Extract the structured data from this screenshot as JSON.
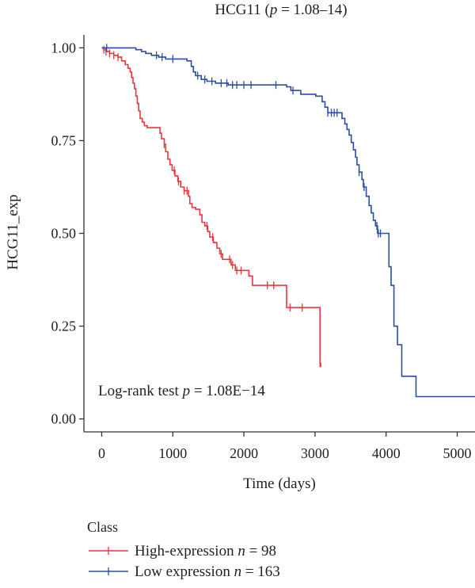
{
  "chart_data": {
    "type": "line",
    "subtype": "kaplan-meier",
    "title": {
      "prefix": "HCG11 (",
      "italic": "p",
      "suffix": " = 1.08–14)"
    },
    "xlabel": "Time (days)",
    "ylabel": "HCG11_exp",
    "xlim": [
      -250,
      5250
    ],
    "ylim": [
      -0.035,
      1.035
    ],
    "x_ticks": [
      0,
      1000,
      2000,
      3000,
      4000,
      5000
    ],
    "x_tick_labels": [
      "0",
      "1000",
      "2000",
      "3000",
      "4000",
      "5000"
    ],
    "y_ticks": [
      0,
      0.25,
      0.5,
      0.75,
      1.0
    ],
    "y_tick_labels": [
      "0.00",
      "0.25",
      "0.50",
      "0.75",
      "1.00"
    ],
    "grid": false,
    "annotation": {
      "prefix": "Log-rank test ",
      "italic": "p",
      "suffix": " = 1.08E−14"
    },
    "legend": {
      "title": "Class",
      "placement": "bottom-left"
    },
    "series": [
      {
        "name": "High-expression",
        "legend_label": {
          "prefix": "High-expression ",
          "italic": "n",
          "suffix": " = 98"
        },
        "color": "#e8383d",
        "steps": [
          [
            0,
            1.0
          ],
          [
            30,
            0.995
          ],
          [
            60,
            0.99
          ],
          [
            110,
            0.985
          ],
          [
            170,
            0.98
          ],
          [
            230,
            0.975
          ],
          [
            280,
            0.965
          ],
          [
            330,
            0.955
          ],
          [
            370,
            0.945
          ],
          [
            400,
            0.935
          ],
          [
            420,
            0.92
          ],
          [
            440,
            0.905
          ],
          [
            460,
            0.89
          ],
          [
            480,
            0.87
          ],
          [
            500,
            0.85
          ],
          [
            520,
            0.83
          ],
          [
            540,
            0.81
          ],
          [
            570,
            0.8
          ],
          [
            600,
            0.79
          ],
          [
            640,
            0.785
          ],
          [
            720,
            0.785
          ],
          [
            820,
            0.77
          ],
          [
            840,
            0.755
          ],
          [
            880,
            0.74
          ],
          [
            900,
            0.72
          ],
          [
            930,
            0.7
          ],
          [
            960,
            0.685
          ],
          [
            990,
            0.67
          ],
          [
            1030,
            0.655
          ],
          [
            1070,
            0.64
          ],
          [
            1110,
            0.625
          ],
          [
            1160,
            0.615
          ],
          [
            1220,
            0.6
          ],
          [
            1240,
            0.58
          ],
          [
            1270,
            0.57
          ],
          [
            1320,
            0.565
          ],
          [
            1380,
            0.55
          ],
          [
            1410,
            0.53
          ],
          [
            1450,
            0.52
          ],
          [
            1490,
            0.505
          ],
          [
            1520,
            0.49
          ],
          [
            1570,
            0.475
          ],
          [
            1620,
            0.46
          ],
          [
            1660,
            0.445
          ],
          [
            1700,
            0.43
          ],
          [
            1820,
            0.415
          ],
          [
            1880,
            0.4
          ],
          [
            2070,
            0.385
          ],
          [
            2120,
            0.36
          ],
          [
            2600,
            0.3
          ],
          [
            3070,
            0.15
          ],
          [
            3080,
            0.14
          ]
        ],
        "censor_times": [
          30,
          60,
          110,
          170,
          230,
          880,
          1020,
          1080,
          1160,
          1200,
          1480,
          1560,
          1680,
          1800,
          1840,
          1900,
          1960,
          2330,
          2420,
          2650,
          2820,
          3070
        ]
      },
      {
        "name": "Low expression",
        "legend_label": {
          "prefix": "Low expression ",
          "italic": "n",
          "suffix": " = 163"
        },
        "color": "#2b4ea2",
        "steps": [
          [
            0,
            1.0
          ],
          [
            480,
            0.995
          ],
          [
            560,
            0.99
          ],
          [
            620,
            0.985
          ],
          [
            700,
            0.98
          ],
          [
            800,
            0.975
          ],
          [
            900,
            0.97
          ],
          [
            1200,
            0.965
          ],
          [
            1260,
            0.95
          ],
          [
            1290,
            0.935
          ],
          [
            1320,
            0.925
          ],
          [
            1400,
            0.915
          ],
          [
            1480,
            0.91
          ],
          [
            1600,
            0.905
          ],
          [
            1780,
            0.9
          ],
          [
            2600,
            0.895
          ],
          [
            2660,
            0.885
          ],
          [
            2800,
            0.875
          ],
          [
            3010,
            0.87
          ],
          [
            3100,
            0.855
          ],
          [
            3140,
            0.84
          ],
          [
            3180,
            0.825
          ],
          [
            3380,
            0.81
          ],
          [
            3420,
            0.795
          ],
          [
            3450,
            0.78
          ],
          [
            3480,
            0.765
          ],
          [
            3510,
            0.745
          ],
          [
            3540,
            0.725
          ],
          [
            3570,
            0.705
          ],
          [
            3590,
            0.685
          ],
          [
            3620,
            0.665
          ],
          [
            3660,
            0.645
          ],
          [
            3680,
            0.625
          ],
          [
            3720,
            0.6
          ],
          [
            3760,
            0.575
          ],
          [
            3790,
            0.555
          ],
          [
            3820,
            0.535
          ],
          [
            3850,
            0.52
          ],
          [
            3880,
            0.5
          ],
          [
            4040,
            0.41
          ],
          [
            4070,
            0.36
          ],
          [
            4110,
            0.25
          ],
          [
            4160,
            0.2
          ],
          [
            4220,
            0.115
          ],
          [
            4420,
            0.06
          ],
          [
            5250,
            0.06
          ]
        ],
        "censor_times": [
          70,
          770,
          850,
          1000,
          1350,
          1450,
          1550,
          1680,
          1760,
          1840,
          1900,
          2000,
          2100,
          2450,
          2690,
          3180,
          3230,
          3270,
          3310,
          3620,
          3690,
          3870,
          3890,
          3920
        ]
      }
    ]
  }
}
